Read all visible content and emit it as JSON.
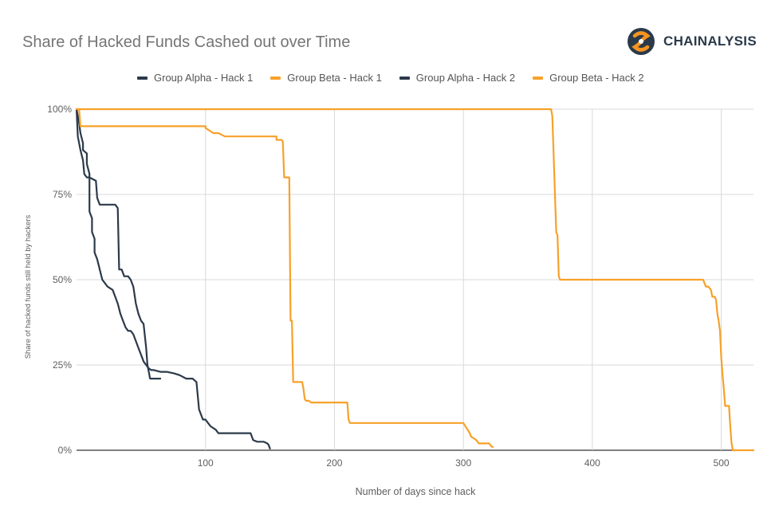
{
  "header": {
    "title": "Share of Hacked Funds Cashed out over Time",
    "brand": "CHAINALYSIS"
  },
  "colors": {
    "alpha": "#2b3a4a",
    "beta": "#f7a12a",
    "logo_orange": "#f7931e",
    "grid": "#d9d9d9",
    "axis_text": "#5f5f5f"
  },
  "chart_data": {
    "type": "line",
    "title": "Share of Hacked Funds Cashed out over Time",
    "xlabel": "Number of days since hack",
    "ylabel": "Share of hacked funds still held by hackers",
    "xlim": [
      0,
      525
    ],
    "ylim": [
      0,
      100
    ],
    "xticks": [
      100,
      200,
      300,
      400,
      500
    ],
    "xtick_labels": [
      "100",
      "200",
      "300",
      "400",
      "500"
    ],
    "yticks": [
      0,
      25,
      50,
      75,
      100
    ],
    "ytick_labels": [
      "0%",
      "25%",
      "50%",
      "75%",
      "100%"
    ],
    "grid": true,
    "legend_position": "top",
    "series": [
      {
        "name": "Group Alpha - Hack 1",
        "color": "#2b3a4a",
        "x": [
          0,
          2,
          3,
          5,
          5,
          8,
          8,
          10,
          10,
          12,
          12,
          14,
          14,
          16,
          18,
          20,
          22,
          24,
          28,
          30,
          32,
          34,
          36,
          38,
          40,
          42,
          44,
          46,
          48,
          50,
          52,
          54,
          56,
          58,
          60,
          65,
          70,
          76,
          80,
          85,
          90,
          93,
          94,
          95,
          96,
          98,
          100,
          102,
          104,
          108,
          110,
          112,
          115,
          120,
          125,
          130,
          135,
          137,
          140,
          145,
          148,
          149,
          150
        ],
        "y": [
          100,
          96,
          93,
          90,
          88,
          87,
          84,
          81,
          70,
          68,
          64,
          62,
          58,
          56,
          53,
          50,
          49,
          48,
          47,
          45,
          43,
          40,
          38,
          36,
          35,
          35,
          34,
          32,
          30,
          28,
          26,
          25,
          24,
          23.5,
          23.5,
          23,
          23,
          22.5,
          22,
          21,
          21,
          20,
          16,
          12,
          11,
          9,
          9,
          8,
          7,
          6,
          5,
          5,
          5,
          5,
          5,
          5,
          5,
          3,
          2.5,
          2.5,
          2,
          1.5,
          0.5
        ]
      },
      {
        "name": "Group Beta - Hack 1",
        "color": "#f7a12a",
        "x": [
          0,
          2,
          3,
          100,
          100,
          102,
          104,
          106,
          110,
          115,
          117,
          155,
          155,
          159,
          160,
          161,
          162,
          165,
          166,
          167,
          168,
          169,
          170,
          175,
          176,
          177,
          178,
          180,
          182,
          210,
          211,
          212,
          213,
          250,
          300,
          305,
          306,
          308,
          310,
          312,
          315,
          320,
          322,
          323
        ],
        "y": [
          100,
          100,
          95,
          95,
          94.5,
          94,
          93.5,
          93,
          93,
          92,
          92,
          92,
          91,
          91,
          90.5,
          80,
          80,
          80,
          38,
          38,
          20,
          20,
          20,
          20,
          18,
          15,
          14.5,
          14.5,
          14,
          14,
          9,
          8,
          8,
          8,
          8,
          5,
          4,
          3.5,
          3,
          2,
          2,
          2,
          1,
          1
        ]
      },
      {
        "name": "Group Alpha -  Hack 2",
        "color": "#2b3a4a",
        "x": [
          0,
          1,
          3,
          5,
          6,
          8,
          10,
          15,
          16,
          17,
          18,
          20,
          25,
          30,
          32,
          33,
          34,
          35,
          37,
          40,
          42,
          44,
          46,
          48,
          50,
          52,
          54,
          55,
          56,
          57,
          58,
          60,
          62,
          65
        ],
        "y": [
          100,
          92,
          88,
          85,
          81,
          80,
          80,
          79,
          74,
          73,
          72,
          72,
          72,
          72,
          71,
          53,
          53,
          53,
          51,
          51,
          50,
          48,
          43,
          40,
          38,
          37,
          30,
          25,
          23,
          21,
          21,
          21,
          21,
          21
        ]
      },
      {
        "name": "Group Beta - Hack 2",
        "color": "#f7a12a",
        "x": [
          0,
          300,
          368,
          369,
          370,
          371,
          372,
          373,
          374,
          375,
          380,
          420,
          480,
          486,
          488,
          490,
          492,
          493,
          494,
          495,
          496,
          497,
          498,
          499,
          500,
          501,
          502,
          503,
          504,
          505,
          506,
          507,
          508,
          509,
          510,
          515,
          525
        ],
        "y": [
          100,
          100,
          100,
          98,
          87,
          75,
          64,
          63,
          51,
          50,
          50,
          50,
          50,
          50,
          48,
          48,
          47,
          45,
          45,
          45,
          44,
          40,
          38,
          35,
          27,
          22,
          18,
          13,
          13,
          13,
          13,
          7,
          2,
          0,
          0,
          0,
          0
        ]
      }
    ]
  }
}
